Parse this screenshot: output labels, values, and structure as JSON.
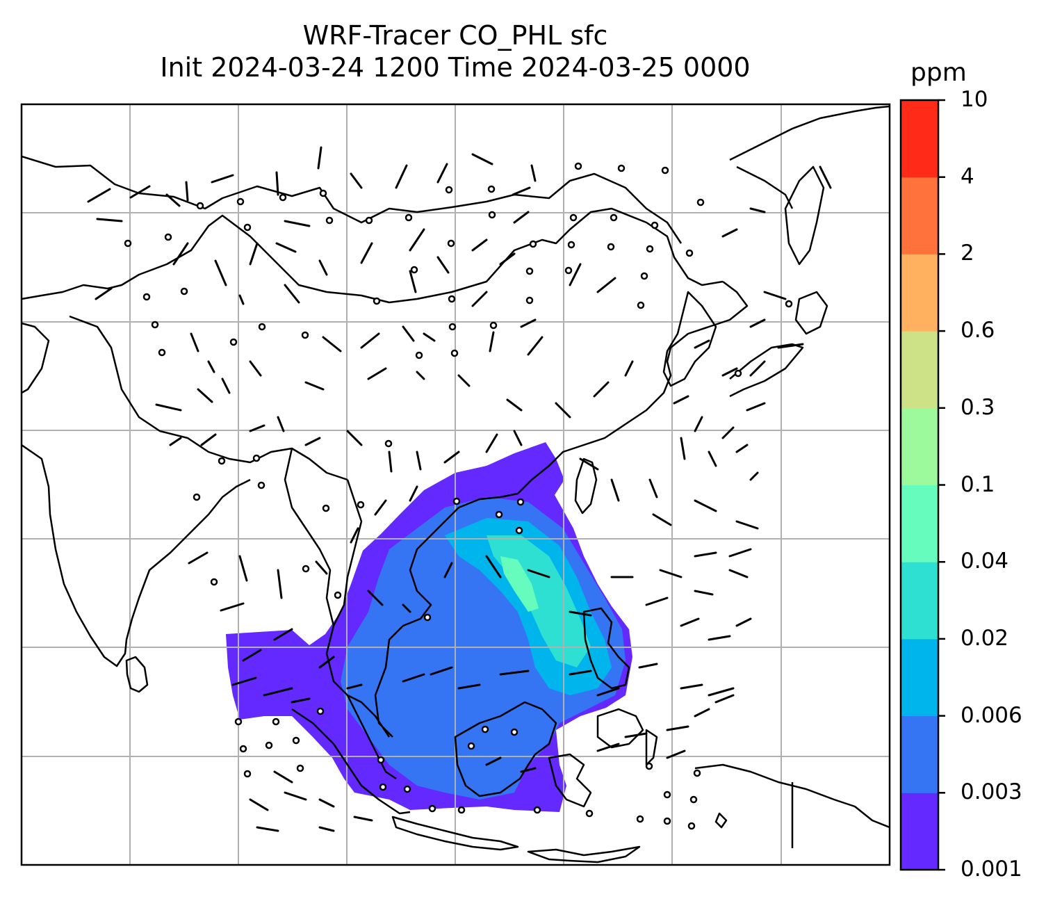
{
  "title": {
    "line1": "WRF-Tracer CO_PHL sfc",
    "line2": "Init 2024-03-24 1200 Time 2024-03-25 0000"
  },
  "colorbar": {
    "unit": "ppm",
    "levels": [
      "0.001",
      "0.003",
      "0.006",
      "0.02",
      "0.04",
      "0.1",
      "0.3",
      "0.6",
      "2",
      "4",
      "10"
    ],
    "colors": [
      "#6329ff",
      "#3575f4",
      "#00b4ec",
      "#2ee0d2",
      "#65fcbe",
      "#9cfa9c",
      "#cde187",
      "#ffb160",
      "#ff723c",
      "#ff2a17"
    ]
  },
  "map": {
    "coastline_color": "#000000",
    "gridline_color": "#b0b0b0",
    "tracer_source": "Philippines (CO_PHL)"
  }
}
